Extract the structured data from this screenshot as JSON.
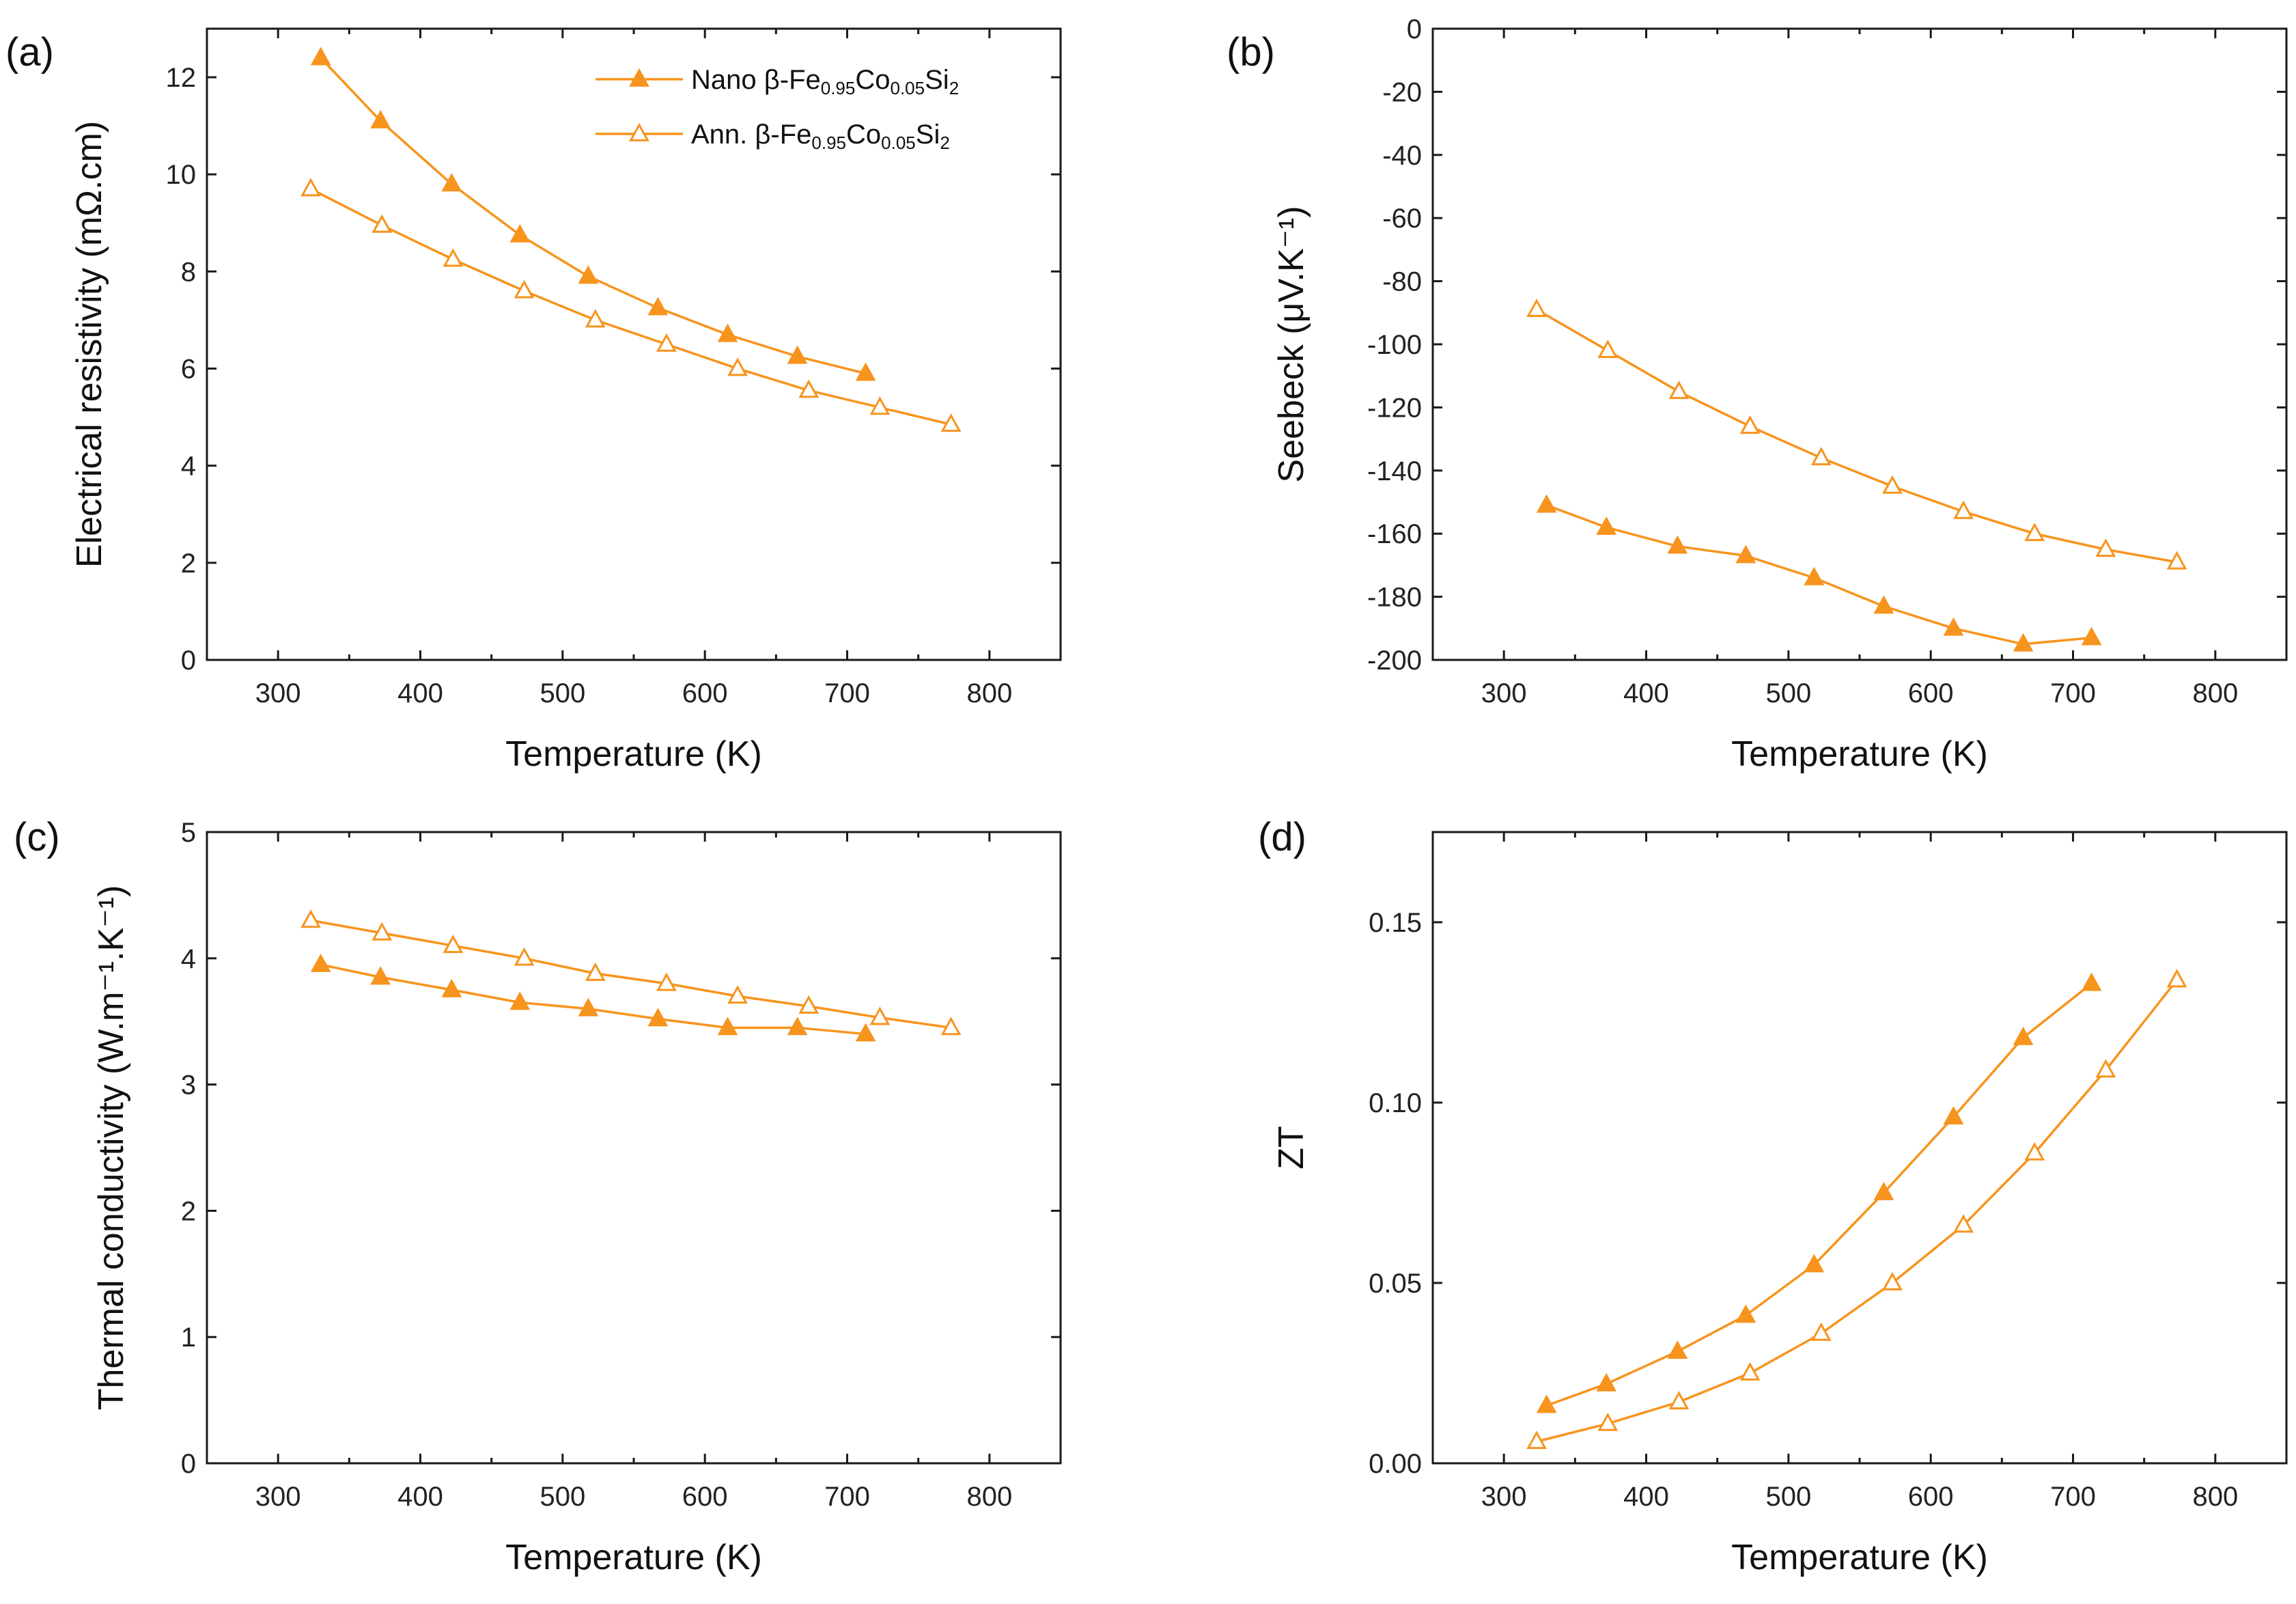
{
  "colors": {
    "series": "#F7941D",
    "axis": "#1a1a1a"
  },
  "legend": {
    "nano": {
      "prefix": "Nano β-Fe",
      "sub1": "0.95",
      "mid": "Co",
      "sub2": "0.05",
      "mid2": "Si",
      "sub3": "2"
    },
    "ann": {
      "prefix": "Ann. β-Fe",
      "sub1": "0.95",
      "mid": "Co",
      "sub2": "0.05",
      "mid2": "Si",
      "sub3": "2"
    }
  },
  "chart_data": [
    {
      "id": "a",
      "panel_label": "(a)",
      "type": "line",
      "xlabel": "Temperature (K)",
      "ylabel": "Electrical resistivity (mΩ.cm)",
      "xlim": [
        250,
        850
      ],
      "ylim": [
        0,
        13
      ],
      "xticks": [
        300,
        400,
        500,
        600,
        700,
        800
      ],
      "yticks": [
        0,
        2,
        4,
        6,
        8,
        10,
        12
      ],
      "ytick_labels": [
        "0",
        "2",
        "4",
        "6",
        "8",
        "10",
        "12"
      ],
      "series": [
        {
          "name": "Nano β-Fe0.95Co0.05Si2",
          "marker": "filled-triangle",
          "x": [
            330,
            372,
            422,
            470,
            518,
            567,
            616,
            665,
            713
          ],
          "y": [
            12.4,
            11.1,
            9.8,
            8.75,
            7.9,
            7.25,
            6.7,
            6.25,
            5.9
          ]
        },
        {
          "name": "Ann. β-Fe0.95Co0.05Si2",
          "marker": "open-triangle",
          "x": [
            323,
            373,
            423,
            473,
            523,
            573,
            623,
            673,
            723,
            773
          ],
          "y": [
            9.7,
            8.95,
            8.25,
            7.6,
            7.0,
            6.5,
            6.0,
            5.55,
            5.2,
            4.85
          ]
        }
      ]
    },
    {
      "id": "b",
      "panel_label": "(b)",
      "type": "line",
      "xlabel": "Temperature (K)",
      "ylabel": "Seebeck (μV.K⁻¹)",
      "xlim": [
        250,
        850
      ],
      "ylim": [
        -200,
        0
      ],
      "xticks": [
        300,
        400,
        500,
        600,
        700,
        800
      ],
      "yticks": [
        -200,
        -180,
        -160,
        -140,
        -120,
        -100,
        -80,
        -60,
        -40,
        -20,
        0
      ],
      "ytick_labels": [
        "-200",
        "-180",
        "-160",
        "-140",
        "-120",
        "-100",
        "-80",
        "-60",
        "-40",
        "-20",
        "0"
      ],
      "series": [
        {
          "name": "Nano β-Fe0.95Co0.05Si2",
          "marker": "filled-triangle",
          "x": [
            330,
            372,
            422,
            470,
            518,
            567,
            616,
            665,
            713
          ],
          "y": [
            -151,
            -158,
            -164,
            -167,
            -174,
            -183,
            -190,
            -195,
            -193
          ]
        },
        {
          "name": "Ann. β-Fe0.95Co0.05Si2",
          "marker": "open-triangle",
          "x": [
            323,
            373,
            423,
            473,
            523,
            573,
            623,
            673,
            723,
            773
          ],
          "y": [
            -89,
            -102,
            -115,
            -126,
            -136,
            -145,
            -153,
            -160,
            -165,
            -169
          ]
        }
      ]
    },
    {
      "id": "c",
      "panel_label": "(c)",
      "type": "line",
      "xlabel": "Temperature (K)",
      "ylabel": "Thermal conductivity (W.m⁻¹.K⁻¹)",
      "xlim": [
        250,
        850
      ],
      "ylim": [
        0,
        5
      ],
      "xticks": [
        300,
        400,
        500,
        600,
        700,
        800
      ],
      "yticks": [
        0,
        1,
        2,
        3,
        4,
        5
      ],
      "ytick_labels": [
        "0",
        "1",
        "2",
        "3",
        "4",
        "5"
      ],
      "series": [
        {
          "name": "Nano β-Fe0.95Co0.05Si2",
          "marker": "filled-triangle",
          "x": [
            330,
            372,
            422,
            470,
            518,
            567,
            616,
            665,
            713
          ],
          "y": [
            3.95,
            3.85,
            3.75,
            3.65,
            3.6,
            3.52,
            3.45,
            3.45,
            3.4
          ]
        },
        {
          "name": "Ann. β-Fe0.95Co0.05Si2",
          "marker": "open-triangle",
          "x": [
            323,
            373,
            423,
            473,
            523,
            573,
            623,
            673,
            723,
            773
          ],
          "y": [
            4.3,
            4.2,
            4.1,
            4.0,
            3.88,
            3.8,
            3.7,
            3.62,
            3.53,
            3.45
          ]
        }
      ]
    },
    {
      "id": "d",
      "panel_label": "(d)",
      "type": "line",
      "xlabel": "Temperature (K)",
      "ylabel": "ZT",
      "xlim": [
        250,
        850
      ],
      "ylim": [
        0,
        0.175
      ],
      "xticks": [
        300,
        400,
        500,
        600,
        700,
        800
      ],
      "yticks": [
        0,
        0.05,
        0.1,
        0.15
      ],
      "ytick_labels": [
        "0.00",
        "0.05",
        "0.10",
        "0.15"
      ],
      "series": [
        {
          "name": "Nano β-Fe0.95Co0.05Si2",
          "marker": "filled-triangle",
          "x": [
            330,
            372,
            422,
            470,
            518,
            567,
            616,
            665,
            713
          ],
          "y": [
            0.016,
            0.022,
            0.031,
            0.041,
            0.055,
            0.075,
            0.096,
            0.118,
            0.133
          ]
        },
        {
          "name": "Ann. β-Fe0.95Co0.05Si2",
          "marker": "open-triangle",
          "x": [
            323,
            373,
            423,
            473,
            523,
            573,
            623,
            673,
            723,
            773
          ],
          "y": [
            0.006,
            0.011,
            0.017,
            0.025,
            0.036,
            0.05,
            0.066,
            0.086,
            0.109,
            0.134
          ]
        }
      ]
    }
  ]
}
